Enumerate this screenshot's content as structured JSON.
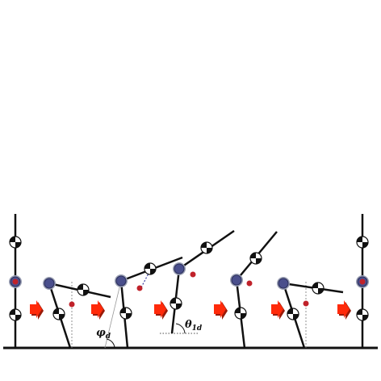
{
  "figure": {
    "labels": {
      "phi_symbol": "φ",
      "phi_subscript": "d",
      "theta_symbol": "θ",
      "theta_subscript": "1d"
    },
    "colors": {
      "background": "#ffffff",
      "ground": "#111111",
      "link": "#111111",
      "hip_joint_fill": "#4a4f8c",
      "hip_ring": "#9aa0b4",
      "com_marker": "#c0222a",
      "arrow_fill": "#ff2a0a",
      "arrow_shadow": "#9a1a08",
      "guide_line": "#999999"
    },
    "icons": [
      "center-of-mass-icon",
      "hip-joint-icon",
      "motion-direction-arrow-icon"
    ],
    "poses": 7,
    "transition_arrows": 6
  }
}
